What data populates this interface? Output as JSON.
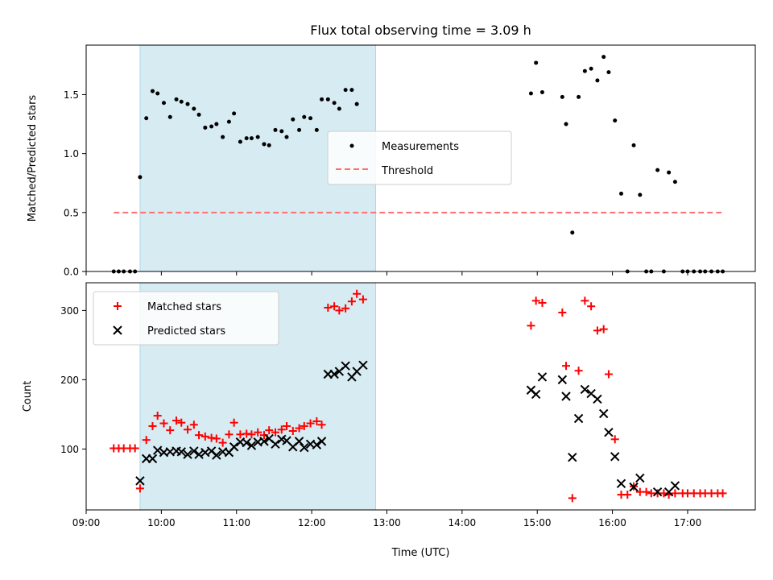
{
  "chart_data": [
    {
      "type": "scatter",
      "title": "Flux total observing time = 3.09 h",
      "xlabel": "",
      "ylabel": "Matched/Predicted stars",
      "xlim": [
        "09:00",
        "17:54"
      ],
      "ylim": [
        0,
        1.92
      ],
      "x_ticks": [
        "09:00",
        "10:00",
        "11:00",
        "12:00",
        "13:00",
        "14:00",
        "15:00",
        "16:00",
        "17:00"
      ],
      "x_tick_labels_visible": false,
      "y_ticks": [
        0.0,
        0.5,
        1.0,
        1.5
      ],
      "y_tick_labels": [
        "0.0",
        "0.5",
        "1.0",
        "1.5"
      ],
      "highlight_span": {
        "start": "09:43",
        "end": "12:51",
        "color": "#add8e6"
      },
      "legend": {
        "position": "center",
        "entries": [
          "Measurements",
          "Threshold"
        ]
      },
      "series": [
        {
          "name": "Measurements",
          "marker": "dot",
          "color": "#000000",
          "points": [
            [
              "09:22",
              0.0
            ],
            [
              "09:26",
              0.0
            ],
            [
              "09:30",
              0.0
            ],
            [
              "09:35",
              0.0
            ],
            [
              "09:39",
              0.0
            ],
            [
              "09:43",
              0.8
            ],
            [
              "09:48",
              1.3
            ],
            [
              "09:53",
              1.53
            ],
            [
              "09:57",
              1.51
            ],
            [
              "10:02",
              1.43
            ],
            [
              "10:07",
              1.31
            ],
            [
              "10:12",
              1.46
            ],
            [
              "10:16",
              1.44
            ],
            [
              "10:21",
              1.42
            ],
            [
              "10:26",
              1.38
            ],
            [
              "10:30",
              1.33
            ],
            [
              "10:35",
              1.22
            ],
            [
              "10:40",
              1.23
            ],
            [
              "10:44",
              1.25
            ],
            [
              "10:49",
              1.14
            ],
            [
              "10:54",
              1.27
            ],
            [
              "10:58",
              1.34
            ],
            [
              "11:03",
              1.1
            ],
            [
              "11:08",
              1.13
            ],
            [
              "11:12",
              1.13
            ],
            [
              "11:17",
              1.14
            ],
            [
              "11:22",
              1.08
            ],
            [
              "11:26",
              1.07
            ],
            [
              "11:31",
              1.2
            ],
            [
              "11:36",
              1.19
            ],
            [
              "11:40",
              1.14
            ],
            [
              "11:45",
              1.29
            ],
            [
              "11:50",
              1.2
            ],
            [
              "11:54",
              1.31
            ],
            [
              "11:59",
              1.3
            ],
            [
              "12:04",
              1.2
            ],
            [
              "12:08",
              1.46
            ],
            [
              "12:13",
              1.46
            ],
            [
              "12:18",
              1.43
            ],
            [
              "12:22",
              1.38
            ],
            [
              "12:27",
              1.54
            ],
            [
              "12:32",
              1.54
            ],
            [
              "12:36",
              1.42
            ],
            [
              "14:55",
              1.51
            ],
            [
              "14:59",
              1.77
            ],
            [
              "15:04",
              1.52
            ],
            [
              "15:20",
              1.48
            ],
            [
              "15:23",
              1.25
            ],
            [
              "15:28",
              0.33
            ],
            [
              "15:33",
              1.48
            ],
            [
              "15:38",
              1.7
            ],
            [
              "15:43",
              1.72
            ],
            [
              "15:48",
              1.62
            ],
            [
              "15:53",
              1.82
            ],
            [
              "15:57",
              1.69
            ],
            [
              "16:02",
              1.28
            ],
            [
              "16:07",
              0.66
            ],
            [
              "16:12",
              0.0
            ],
            [
              "16:17",
              1.07
            ],
            [
              "16:22",
              0.65
            ],
            [
              "16:27",
              0.0
            ],
            [
              "16:31",
              0.0
            ],
            [
              "16:36",
              0.86
            ],
            [
              "16:41",
              0.0
            ],
            [
              "16:45",
              0.84
            ],
            [
              "16:50",
              0.76
            ],
            [
              "16:56",
              0.0
            ],
            [
              "17:00",
              0.0
            ],
            [
              "17:05",
              0.0
            ],
            [
              "17:10",
              0.0
            ],
            [
              "17:14",
              0.0
            ],
            [
              "17:19",
              0.0
            ],
            [
              "17:24",
              0.0
            ],
            [
              "17:28",
              0.0
            ]
          ]
        },
        {
          "name": "Threshold",
          "type": "line",
          "style": "dashed",
          "color": "#ff7070",
          "points": [
            [
              "09:22",
              0.5
            ],
            [
              "17:28",
              0.5
            ]
          ]
        }
      ]
    },
    {
      "type": "scatter",
      "title": "",
      "xlabel": "Time (UTC)",
      "ylabel": "Count",
      "xlim": [
        "09:00",
        "17:54"
      ],
      "ylim": [
        12,
        340
      ],
      "x_ticks": [
        "09:00",
        "10:00",
        "11:00",
        "12:00",
        "13:00",
        "14:00",
        "15:00",
        "16:00",
        "17:00"
      ],
      "x_tick_labels": [
        "09:00",
        "10:00",
        "11:00",
        "12:00",
        "13:00",
        "14:00",
        "15:00",
        "16:00",
        "17:00"
      ],
      "y_ticks": [
        100,
        200,
        300
      ],
      "y_tick_labels": [
        "100",
        "200",
        "300"
      ],
      "highlight_span": {
        "start": "09:43",
        "end": "12:51",
        "color": "#add8e6"
      },
      "legend": {
        "position": "upper-left",
        "entries": [
          "Matched stars",
          "Predicted stars"
        ]
      },
      "series": [
        {
          "name": "Matched stars",
          "marker": "plus",
          "color": "#ff0000",
          "points": [
            [
              "09:22",
              101
            ],
            [
              "09:26",
              101
            ],
            [
              "09:30",
              101
            ],
            [
              "09:35",
              101
            ],
            [
              "09:39",
              101
            ],
            [
              "09:43",
              43
            ],
            [
              "09:48",
              113
            ],
            [
              "09:53",
              133
            ],
            [
              "09:57",
              148
            ],
            [
              "10:02",
              137
            ],
            [
              "10:07",
              127
            ],
            [
              "10:12",
              141
            ],
            [
              "10:16",
              138
            ],
            [
              "10:21",
              128
            ],
            [
              "10:26",
              135
            ],
            [
              "10:30",
              120
            ],
            [
              "10:35",
              118
            ],
            [
              "10:40",
              116
            ],
            [
              "10:44",
              115
            ],
            [
              "10:49",
              109
            ],
            [
              "10:54",
              121
            ],
            [
              "10:58",
              138
            ],
            [
              "11:03",
              121
            ],
            [
              "11:08",
              122
            ],
            [
              "11:12",
              121
            ],
            [
              "11:17",
              124
            ],
            [
              "11:22",
              120
            ],
            [
              "11:26",
              127
            ],
            [
              "11:31",
              124
            ],
            [
              "11:36",
              128
            ],
            [
              "11:40",
              133
            ],
            [
              "11:45",
              126
            ],
            [
              "11:50",
              130
            ],
            [
              "11:54",
              133
            ],
            [
              "11:59",
              137
            ],
            [
              "12:04",
              140
            ],
            [
              "12:08",
              135
            ],
            [
              "12:13",
              304
            ],
            [
              "12:18",
              306
            ],
            [
              "12:22",
              300
            ],
            [
              "12:27",
              303
            ],
            [
              "12:32",
              313
            ],
            [
              "12:36",
              324
            ],
            [
              "12:41",
              316
            ],
            [
              "14:55",
              278
            ],
            [
              "14:59",
              314
            ],
            [
              "15:04",
              311
            ],
            [
              "15:20",
              297
            ],
            [
              "15:23",
              220
            ],
            [
              "15:28",
              29
            ],
            [
              "15:33",
              213
            ],
            [
              "15:38",
              314
            ],
            [
              "15:43",
              306
            ],
            [
              "15:48",
              271
            ],
            [
              "15:53",
              273
            ],
            [
              "15:57",
              208
            ],
            [
              "16:02",
              114
            ],
            [
              "16:07",
              34
            ],
            [
              "16:12",
              34
            ],
            [
              "16:17",
              46
            ],
            [
              "16:22",
              38
            ],
            [
              "16:27",
              38
            ],
            [
              "16:31",
              36
            ],
            [
              "16:36",
              36
            ],
            [
              "16:41",
              36
            ],
            [
              "16:45",
              34
            ],
            [
              "16:50",
              36
            ],
            [
              "16:56",
              36
            ],
            [
              "17:00",
              36
            ],
            [
              "17:05",
              36
            ],
            [
              "17:10",
              36
            ],
            [
              "17:14",
              36
            ],
            [
              "17:19",
              36
            ],
            [
              "17:24",
              36
            ],
            [
              "17:28",
              36
            ]
          ]
        },
        {
          "name": "Predicted stars",
          "marker": "x",
          "color": "#000000",
          "points": [
            [
              "09:43",
              54
            ],
            [
              "09:48",
              86
            ],
            [
              "09:53",
              86
            ],
            [
              "09:57",
              98
            ],
            [
              "10:02",
              95
            ],
            [
              "10:07",
              96
            ],
            [
              "10:12",
              97
            ],
            [
              "10:16",
              96
            ],
            [
              "10:21",
              92
            ],
            [
              "10:26",
              97
            ],
            [
              "10:30",
              92
            ],
            [
              "10:35",
              95
            ],
            [
              "10:40",
              97
            ],
            [
              "10:44",
              91
            ],
            [
              "10:49",
              96
            ],
            [
              "10:54",
              95
            ],
            [
              "10:58",
              103
            ],
            [
              "11:03",
              110
            ],
            [
              "11:08",
              109
            ],
            [
              "11:12",
              105
            ],
            [
              "11:17",
              110
            ],
            [
              "11:22",
              111
            ],
            [
              "11:26",
              115
            ],
            [
              "11:31",
              107
            ],
            [
              "11:36",
              114
            ],
            [
              "11:40",
              112
            ],
            [
              "11:45",
              103
            ],
            [
              "11:50",
              111
            ],
            [
              "11:54",
              102
            ],
            [
              "11:59",
              107
            ],
            [
              "12:04",
              106
            ],
            [
              "12:08",
              111
            ],
            [
              "12:13",
              208
            ],
            [
              "12:18",
              208
            ],
            [
              "12:22",
              212
            ],
            [
              "12:27",
              220
            ],
            [
              "12:32",
              204
            ],
            [
              "12:36",
              212
            ],
            [
              "12:41",
              221
            ],
            [
              "14:55",
              185
            ],
            [
              "14:59",
              179
            ],
            [
              "15:04",
              204
            ],
            [
              "15:20",
              200
            ],
            [
              "15:23",
              176
            ],
            [
              "15:28",
              88
            ],
            [
              "15:33",
              144
            ],
            [
              "15:38",
              186
            ],
            [
              "15:43",
              180
            ],
            [
              "15:48",
              172
            ],
            [
              "15:53",
              151
            ],
            [
              "15:57",
              124
            ],
            [
              "16:02",
              89
            ],
            [
              "16:07",
              50
            ],
            [
              "16:17",
              45
            ],
            [
              "16:22",
              58
            ],
            [
              "16:36",
              38
            ],
            [
              "16:45",
              38
            ],
            [
              "16:50",
              47
            ]
          ]
        }
      ]
    }
  ]
}
